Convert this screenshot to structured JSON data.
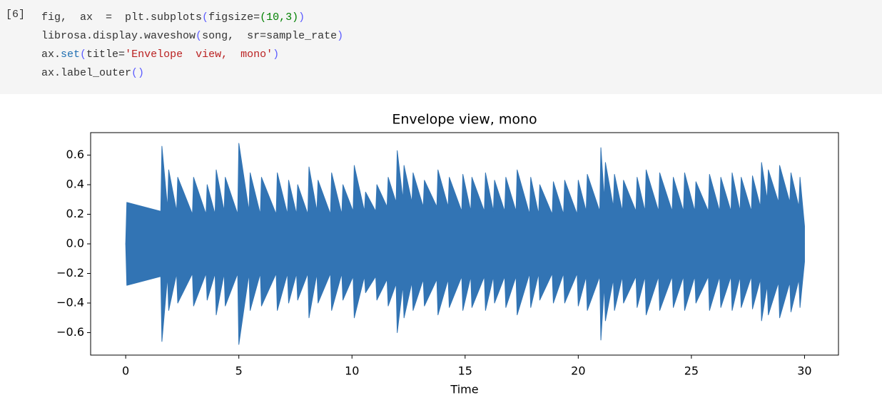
{
  "cell": {
    "prompt": "[6]",
    "code": [
      [
        {
          "text": "fig,  ax  =  plt.subplots",
          "color": "#333333"
        },
        {
          "text": "(",
          "color": "#5c5cff"
        },
        {
          "text": "figsize=",
          "color": "#333333"
        },
        {
          "text": "(10,3)",
          "color": "#008000"
        },
        {
          "text": ")",
          "color": "#5c5cff"
        }
      ],
      [
        {
          "text": "librosa.display.waveshow",
          "color": "#333333"
        },
        {
          "text": "(",
          "color": "#5c5cff"
        },
        {
          "text": "song,  sr=sample_rate",
          "color": "#333333"
        },
        {
          "text": ")",
          "color": "#5c5cff"
        }
      ],
      [
        {
          "text": "ax.",
          "color": "#333333"
        },
        {
          "text": "set",
          "color": "#1f6fb2"
        },
        {
          "text": "(",
          "color": "#5c5cff"
        },
        {
          "text": "title=",
          "color": "#333333"
        },
        {
          "text": "'Envelope  view,  mono'",
          "color": "#ba2121"
        },
        {
          "text": ")",
          "color": "#5c5cff"
        }
      ],
      [
        {
          "text": "ax.label_outer",
          "color": "#333333"
        },
        {
          "text": "()",
          "color": "#5c5cff"
        }
      ]
    ]
  },
  "chart_data": {
    "type": "area",
    "title": "Envelope view, mono",
    "x_label": "Time",
    "x": [
      0,
      0.05,
      1.55,
      1.6,
      1.85,
      1.9,
      2.25,
      2.3,
      2.95,
      3.0,
      3.55,
      3.6,
      3.95,
      4.0,
      4.35,
      4.4,
      4.95,
      5.0,
      5.45,
      5.5,
      5.95,
      6.0,
      6.65,
      6.7,
      7.15,
      7.2,
      7.55,
      7.6,
      8.05,
      8.1,
      8.45,
      8.5,
      9.05,
      9.1,
      9.55,
      9.6,
      10.05,
      10.1,
      10.55,
      10.6,
      11.05,
      11.1,
      11.55,
      11.6,
      11.95,
      12.0,
      12.25,
      12.3,
      12.65,
      12.7,
      13.15,
      13.2,
      13.75,
      13.8,
      14.25,
      14.3,
      14.85,
      14.9,
      15.25,
      15.3,
      15.85,
      15.9,
      16.25,
      16.3,
      16.75,
      16.8,
      17.25,
      17.3,
      17.85,
      17.9,
      18.25,
      18.3,
      18.85,
      18.9,
      19.35,
      19.4,
      19.95,
      20.0,
      20.35,
      20.4,
      20.95,
      21.0,
      21.15,
      21.2,
      21.55,
      21.6,
      21.95,
      22.0,
      22.55,
      22.6,
      22.95,
      23.0,
      23.55,
      23.6,
      24.15,
      24.2,
      24.65,
      24.7,
      25.15,
      25.2,
      25.75,
      25.8,
      26.25,
      26.3,
      26.75,
      26.8,
      27.15,
      27.2,
      27.65,
      27.7,
      28.05,
      28.1,
      28.35,
      28.4,
      28.85,
      28.9,
      29.35,
      29.4,
      29.75,
      29.8,
      30.0
    ],
    "series": [
      {
        "color": "#3274b4",
        "values": [
          0,
          0.28,
          0.22,
          0.66,
          0.24,
          0.5,
          0.22,
          0.45,
          0.2,
          0.45,
          0.2,
          0.4,
          0.2,
          0.5,
          0.22,
          0.45,
          0.2,
          0.68,
          0.22,
          0.48,
          0.2,
          0.45,
          0.2,
          0.48,
          0.2,
          0.43,
          0.2,
          0.4,
          0.2,
          0.52,
          0.22,
          0.43,
          0.2,
          0.48,
          0.2,
          0.4,
          0.22,
          0.53,
          0.22,
          0.35,
          0.22,
          0.4,
          0.25,
          0.45,
          0.28,
          0.63,
          0.3,
          0.53,
          0.28,
          0.48,
          0.25,
          0.43,
          0.25,
          0.5,
          0.25,
          0.45,
          0.22,
          0.47,
          0.22,
          0.45,
          0.22,
          0.48,
          0.22,
          0.43,
          0.22,
          0.45,
          0.22,
          0.5,
          0.2,
          0.45,
          0.2,
          0.4,
          0.2,
          0.42,
          0.2,
          0.43,
          0.2,
          0.43,
          0.22,
          0.47,
          0.22,
          0.65,
          0.3,
          0.55,
          0.25,
          0.47,
          0.22,
          0.43,
          0.22,
          0.45,
          0.22,
          0.5,
          0.22,
          0.48,
          0.22,
          0.45,
          0.22,
          0.48,
          0.22,
          0.42,
          0.22,
          0.47,
          0.22,
          0.45,
          0.22,
          0.48,
          0.22,
          0.45,
          0.22,
          0.46,
          0.25,
          0.55,
          0.3,
          0.5,
          0.28,
          0.53,
          0.28,
          0.48,
          0.25,
          0.45,
          0.12
        ]
      },
      {
        "color": "#3274b4",
        "values": [
          0,
          -0.28,
          -0.22,
          -0.66,
          -0.22,
          -0.45,
          -0.2,
          -0.4,
          -0.2,
          -0.42,
          -0.2,
          -0.38,
          -0.2,
          -0.48,
          -0.2,
          -0.42,
          -0.2,
          -0.68,
          -0.2,
          -0.45,
          -0.2,
          -0.42,
          -0.2,
          -0.45,
          -0.2,
          -0.4,
          -0.2,
          -0.38,
          -0.2,
          -0.5,
          -0.2,
          -0.4,
          -0.2,
          -0.45,
          -0.2,
          -0.38,
          -0.22,
          -0.5,
          -0.22,
          -0.33,
          -0.22,
          -0.38,
          -0.24,
          -0.42,
          -0.27,
          -0.6,
          -0.28,
          -0.5,
          -0.26,
          -0.45,
          -0.24,
          -0.42,
          -0.24,
          -0.48,
          -0.24,
          -0.43,
          -0.22,
          -0.45,
          -0.22,
          -0.43,
          -0.22,
          -0.45,
          -0.22,
          -0.4,
          -0.22,
          -0.43,
          -0.22,
          -0.48,
          -0.2,
          -0.43,
          -0.2,
          -0.38,
          -0.2,
          -0.4,
          -0.2,
          -0.4,
          -0.2,
          -0.42,
          -0.22,
          -0.45,
          -0.22,
          -0.65,
          -0.28,
          -0.52,
          -0.24,
          -0.45,
          -0.22,
          -0.4,
          -0.22,
          -0.43,
          -0.22,
          -0.48,
          -0.22,
          -0.45,
          -0.22,
          -0.43,
          -0.22,
          -0.45,
          -0.22,
          -0.4,
          -0.22,
          -0.45,
          -0.22,
          -0.43,
          -0.22,
          -0.45,
          -0.22,
          -0.43,
          -0.22,
          -0.44,
          -0.24,
          -0.52,
          -0.28,
          -0.48,
          -0.26,
          -0.5,
          -0.26,
          -0.46,
          -0.24,
          -0.43,
          -0.12
        ]
      }
    ],
    "xlim": [
      -1.55,
      31.5
    ],
    "xticks": [
      0,
      5,
      10,
      15,
      20,
      25,
      30
    ],
    "ylim": [
      -0.752,
      0.752
    ],
    "yticks": [
      {
        "value": -0.6,
        "label": "−0.6"
      },
      {
        "value": -0.4,
        "label": "−0.4"
      },
      {
        "value": -0.2,
        "label": "−0.2"
      },
      {
        "value": 0,
        "label": "0.0"
      },
      0.2,
      0.4,
      0.6
    ],
    "grid": false
  }
}
